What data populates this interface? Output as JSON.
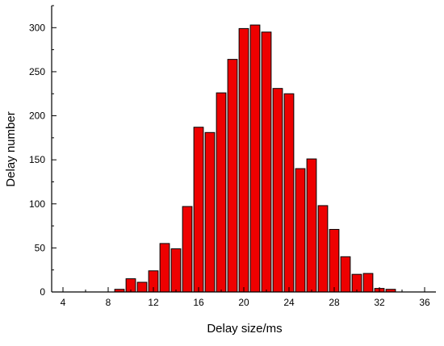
{
  "chart_data": {
    "type": "bar",
    "title": "",
    "xlabel": "Delay size/ms",
    "ylabel": "Delay number",
    "xlim": [
      3,
      37
    ],
    "ylim": [
      0,
      325
    ],
    "xticks": [
      4,
      8,
      12,
      16,
      20,
      24,
      28,
      32,
      36
    ],
    "xtick_labels": [
      "4",
      "8",
      "12",
      "16",
      "20",
      "24",
      "28",
      "32",
      "36"
    ],
    "yticks": [
      0,
      50,
      100,
      150,
      200,
      250,
      300
    ],
    "ytick_labels": [
      "0",
      "50",
      "100",
      "150",
      "200",
      "250",
      "300"
    ],
    "x": [
      9,
      10,
      11,
      12,
      13,
      14,
      15,
      16,
      17,
      18,
      19,
      20,
      21,
      22,
      23,
      24,
      25,
      26,
      27,
      28,
      29,
      30,
      31,
      32,
      33
    ],
    "values": [
      3,
      15,
      11,
      24,
      55,
      49,
      97,
      187,
      181,
      226,
      264,
      299,
      303,
      295,
      231,
      225,
      140,
      151,
      98,
      71,
      40,
      20,
      21,
      4,
      3
    ],
    "bar_fill": "#ee0000",
    "bar_stroke": "#000000",
    "grid": false,
    "legend": "none"
  }
}
